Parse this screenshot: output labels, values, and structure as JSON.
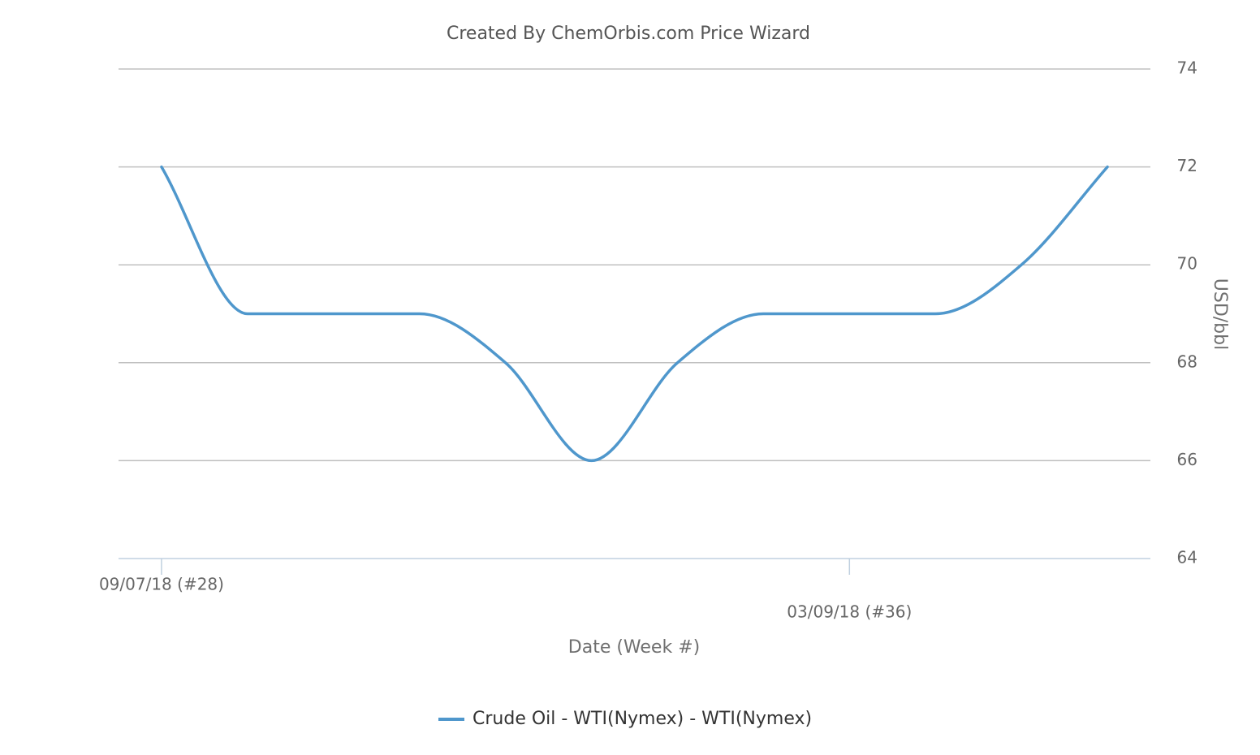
{
  "chart_data": {
    "type": "line",
    "title": "Created By ChemOrbis.com Price Wizard",
    "x_label": "Date (Week #)",
    "y_label": "USD/bbl",
    "categories": [
      "09/07/18 (#28)",
      null,
      null,
      null,
      null,
      null,
      null,
      null,
      "03/09/18 (#36)",
      null,
      null,
      null
    ],
    "series": [
      {
        "name": "Crude Oil - WTI(Nymex) - WTI(Nymex)",
        "color": "#4f97cc",
        "values": [
          72,
          69,
          69,
          69,
          68,
          66,
          68,
          69,
          69,
          69,
          70,
          72
        ]
      }
    ],
    "ylim": [
      64,
      74
    ],
    "yticks": [
      64,
      66,
      68,
      70,
      72,
      74
    ],
    "grid": true,
    "y_axis_side": "right",
    "smooth": true
  }
}
